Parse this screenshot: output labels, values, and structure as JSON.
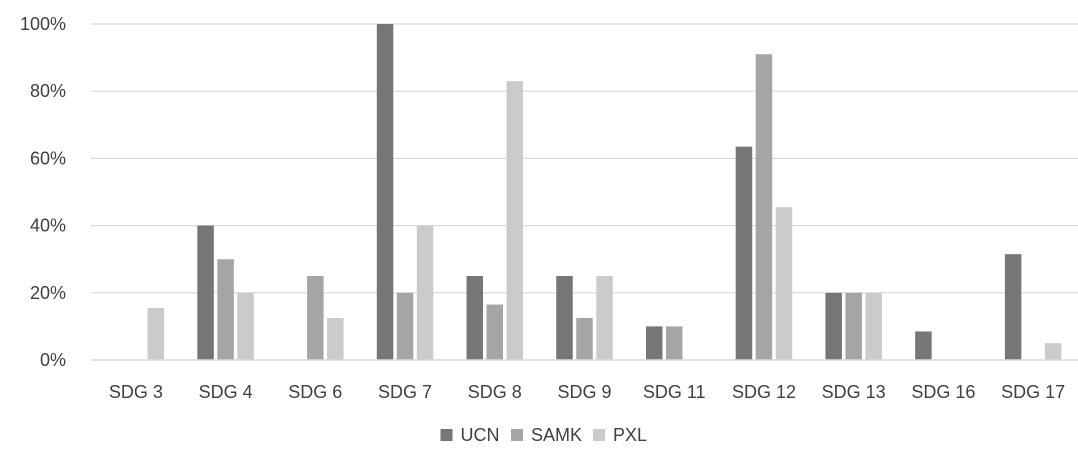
{
  "chart_data": {
    "type": "bar",
    "categories": [
      "SDG 3",
      "SDG 4",
      "SDG 6",
      "SDG 7",
      "SDG 8",
      "SDG 9",
      "SDG 11",
      "SDG 12",
      "SDG 13",
      "SDG 16",
      "SDG 17"
    ],
    "series": [
      {
        "name": "UCN",
        "color": "#767676",
        "values": [
          0,
          40,
          0,
          100,
          25,
          25,
          10,
          63.5,
          20,
          8.5,
          31.5
        ]
      },
      {
        "name": "SAMK",
        "color": "#a5a5a5",
        "values": [
          0,
          30,
          25,
          20,
          16.5,
          12.5,
          10,
          91,
          20,
          0,
          0
        ]
      },
      {
        "name": "PXL",
        "color": "#cbcbcb",
        "values": [
          15.5,
          20,
          12.5,
          40,
          83,
          25,
          0,
          45.5,
          20,
          0,
          5
        ]
      }
    ],
    "y_ticks": [
      "0%",
      "20%",
      "40%",
      "60%",
      "80%",
      "100%"
    ],
    "ylim": [
      0,
      100
    ],
    "grid": true,
    "legend_position": "bottom"
  }
}
